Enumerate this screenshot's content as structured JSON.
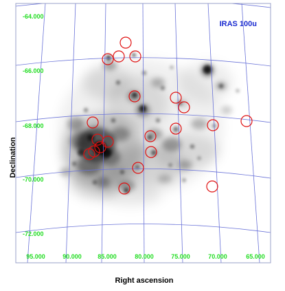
{
  "panel_label": "IRAS 100u",
  "axis_titles": {
    "y": "Declination",
    "x": "Right ascension"
  },
  "dec_labels": [
    "-64.000",
    "-66.000",
    "-68.000",
    "-70.000",
    "-72.000"
  ],
  "ra_labels": [
    "95.000",
    "90.000",
    "85.000",
    "80.000",
    "75.000",
    "70.000",
    "65.000"
  ],
  "colors": {
    "grid": "#6a73d8",
    "marker": "#e01010",
    "label_green": "#22dd22",
    "panel_label": "#1a2bd0"
  },
  "region_count": 20
}
